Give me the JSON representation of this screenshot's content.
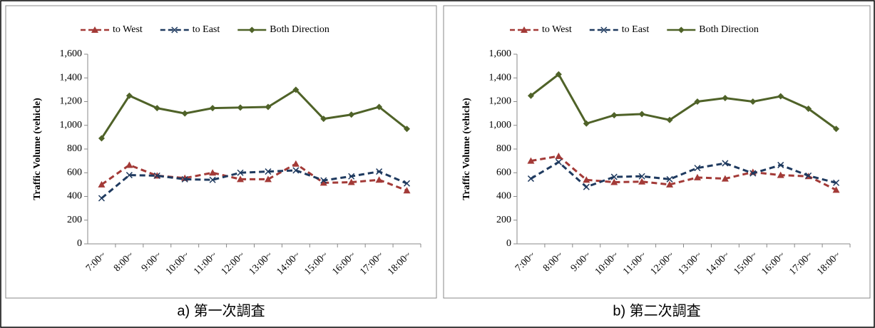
{
  "chart_data": [
    {
      "type": "line",
      "caption": "a)  第一次調査",
      "y_label": "Traffic Volume (vehicle)",
      "categories": [
        "7:00~",
        "8:00~",
        "9:00~",
        "10:00~",
        "11:00~",
        "12:00~",
        "13:00~",
        "14:00~",
        "15:00~",
        "16:00~",
        "17:00~",
        "18:00~"
      ],
      "ylim": [
        0,
        1600
      ],
      "yticks": [
        0,
        200,
        400,
        600,
        800,
        {
          "value": 1000,
          "label": "1,000"
        },
        {
          "value": 1200,
          "label": "1,200"
        },
        {
          "value": 1400,
          "label": "1,400"
        },
        {
          "value": 1600,
          "label": "1,600"
        }
      ],
      "grid": false,
      "legend": "top",
      "series": [
        {
          "name": "to West",
          "color": "#a33a37",
          "line_style": "dashed",
          "marker": "triangle",
          "values": [
            500,
            665,
            575,
            555,
            600,
            545,
            545,
            675,
            515,
            520,
            540,
            450
          ]
        },
        {
          "name": "to East",
          "color": "#1f3a5f",
          "line_style": "dashed",
          "marker": "x",
          "values": [
            385,
            580,
            575,
            545,
            540,
            600,
            610,
            620,
            535,
            570,
            610,
            510
          ]
        },
        {
          "name": "Both Direction",
          "color": "#4f6228",
          "line_style": "solid",
          "marker": "diamond",
          "values": [
            890,
            1250,
            1145,
            1100,
            1145,
            1150,
            1155,
            1300,
            1055,
            1090,
            1155,
            970
          ]
        }
      ]
    },
    {
      "type": "line",
      "caption": "b)  第二次調査",
      "y_label": "Traffic Volume (vehicle)",
      "categories": [
        "7:00~",
        "8:00~",
        "9:00~",
        "10:00~",
        "11:00~",
        "12:00~",
        "13:00~",
        "14:00~",
        "15:00~",
        "16:00~",
        "17:00~",
        "18:00~"
      ],
      "ylim": [
        0,
        1600
      ],
      "yticks": [
        0,
        200,
        400,
        600,
        800,
        {
          "value": 1000,
          "label": "1,000"
        },
        {
          "value": 1200,
          "label": "1,200"
        },
        {
          "value": 1400,
          "label": "1,400"
        },
        {
          "value": 1600,
          "label": "1,600"
        }
      ],
      "grid": false,
      "legend": "top",
      "series": [
        {
          "name": "to West",
          "color": "#a33a37",
          "line_style": "dashed",
          "marker": "triangle",
          "values": [
            700,
            740,
            540,
            520,
            525,
            500,
            560,
            550,
            605,
            580,
            570,
            455
          ]
        },
        {
          "name": "to East",
          "color": "#1f3a5f",
          "line_style": "dashed",
          "marker": "x",
          "values": [
            550,
            690,
            480,
            565,
            570,
            545,
            640,
            680,
            595,
            665,
            575,
            515
          ]
        },
        {
          "name": "Both Direction",
          "color": "#4f6228",
          "line_style": "solid",
          "marker": "diamond",
          "values": [
            1250,
            1430,
            1015,
            1085,
            1095,
            1045,
            1200,
            1230,
            1200,
            1245,
            1140,
            970
          ]
        }
      ]
    }
  ]
}
